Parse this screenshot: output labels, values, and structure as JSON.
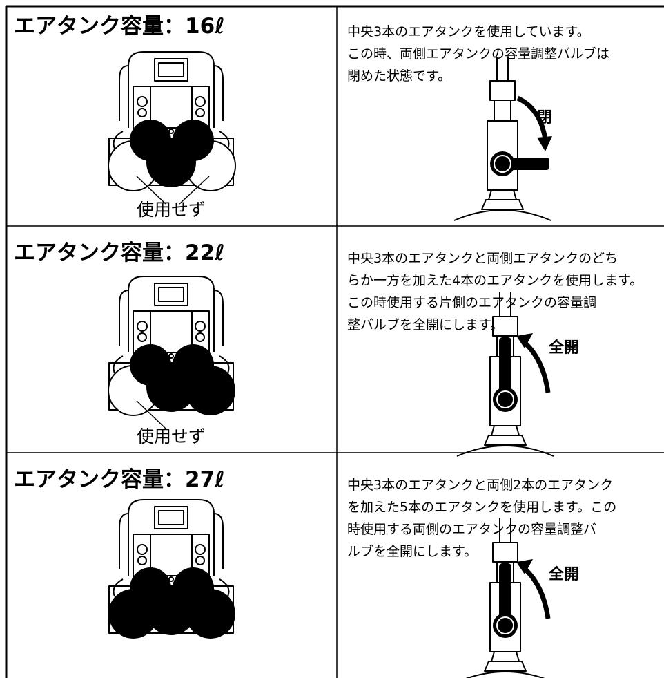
{
  "rows": [
    {
      "title": "エアタンク容量：16ℓ",
      "caption": "使用せず",
      "description": [
        "中央3本のエアタンクを使用しています。",
        "この時、両側エアタンクの容量調整バルブは",
        "閉めた状態です。"
      ],
      "valve_label": "閉"
    },
    {
      "title": "エアタンク容量：22ℓ",
      "caption": "使用せず",
      "description": [
        "中央3本のエアタンクと両側エアタンクのどち",
        "らか一方を加えた4本のエアタンクを使用します。",
        "この時使用する片側のエアタンクの容量調",
        "整バルブを全開にします。"
      ],
      "valve_label": "全開"
    },
    {
      "title": "エアタンク容量：27ℓ",
      "description": [
        "中央3本のエアタンクと両側2本のエアタンク",
        "を加えた5本のエアタンクを使用します。この",
        "時使用する両側のエアタンクの容量調整バ",
        "ルブを全開にします。"
      ],
      "valve_label": "全開"
    }
  ]
}
